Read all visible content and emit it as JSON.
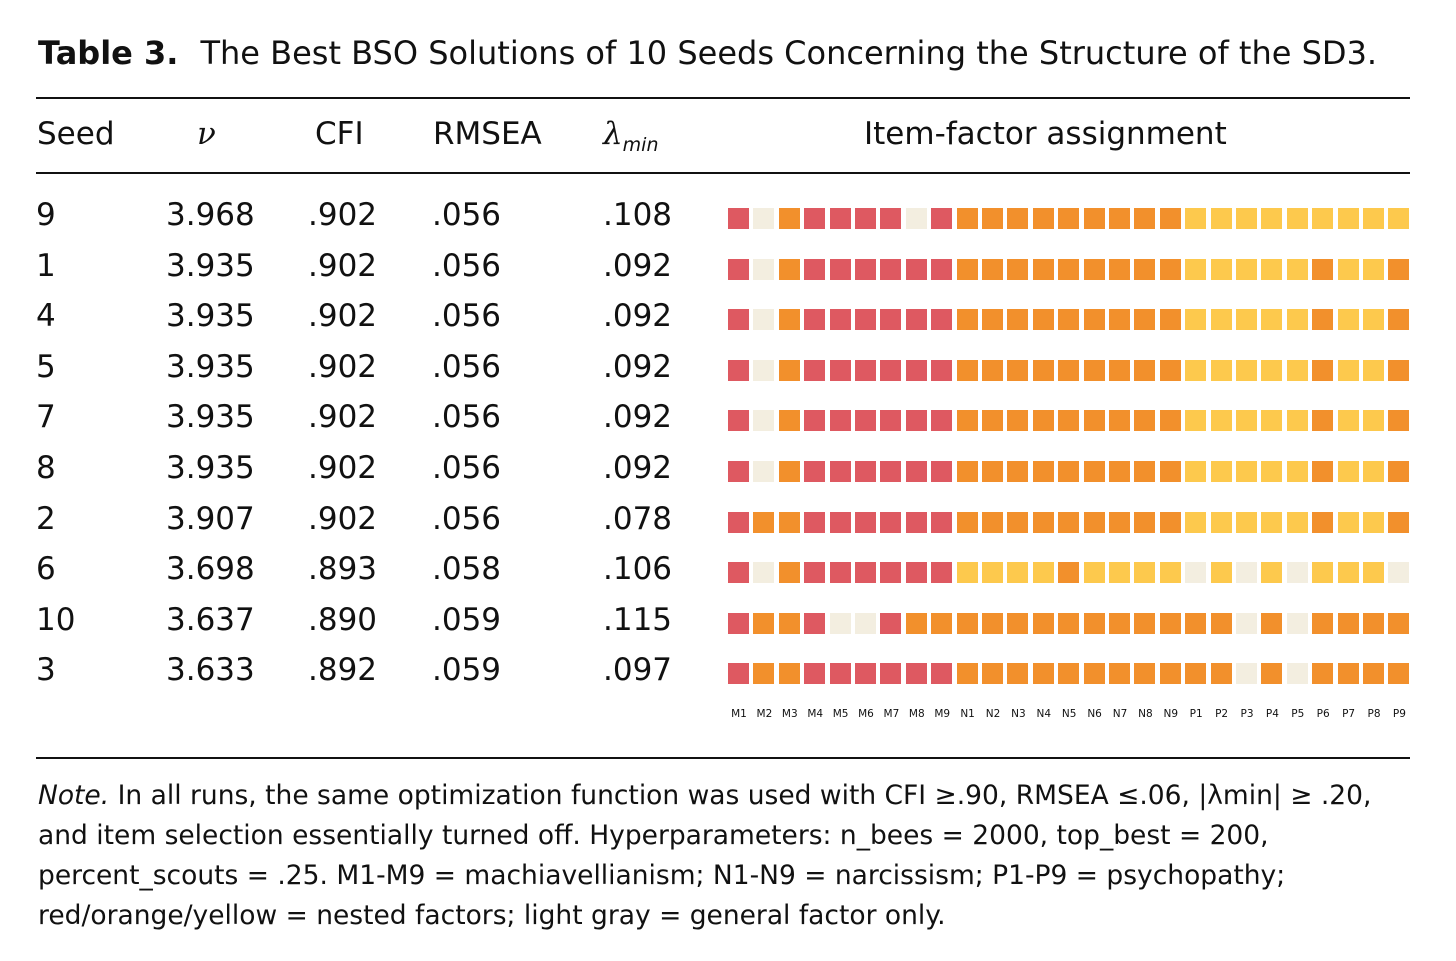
{
  "caption": {
    "label": "Table 3.",
    "text": "The Best BSO Solutions of 10 Seeds Concerning the Structure of the SD3."
  },
  "columns": {
    "seed": "Seed",
    "nu": "ν",
    "cfi": "CFI",
    "rmsea": "RMSEA",
    "lambda_symbol": "λ",
    "lambda_sub": "min",
    "assignment": "Item-factor assignment"
  },
  "items": [
    "M1",
    "M2",
    "M3",
    "M4",
    "M5",
    "M6",
    "M7",
    "M8",
    "M9",
    "N1",
    "N2",
    "N3",
    "N4",
    "N5",
    "N6",
    "N7",
    "N8",
    "N9",
    "P1",
    "P2",
    "P3",
    "P4",
    "P5",
    "P6",
    "P7",
    "P8",
    "P9"
  ],
  "factor_colors": {
    "R": "#de5961",
    "O": "#f2902c",
    "Y": "#fdc94d",
    "G": "#f3eee0"
  },
  "factor_legend": "R = red, O = orange, Y = yellow, G = light gray (general factor only)",
  "rows": [
    {
      "seed": "9",
      "nu": "3.968",
      "cfi": ".902",
      "rmsea": ".056",
      "lambda": ".108",
      "assignment": "RGORRRRGROOOOOOOOOYYYYYYYYY"
    },
    {
      "seed": "1",
      "nu": "3.935",
      "cfi": ".902",
      "rmsea": ".056",
      "lambda": ".092",
      "assignment": "RGORRRRRROOOOOOOOOYYYYYOYYO"
    },
    {
      "seed": "4",
      "nu": "3.935",
      "cfi": ".902",
      "rmsea": ".056",
      "lambda": ".092",
      "assignment": "RGORRRRRROOOOOOOOOYYYYYOYYO"
    },
    {
      "seed": "5",
      "nu": "3.935",
      "cfi": ".902",
      "rmsea": ".056",
      "lambda": ".092",
      "assignment": "RGORRRRRROOOOOOOOOYYYYYOYYO"
    },
    {
      "seed": "7",
      "nu": "3.935",
      "cfi": ".902",
      "rmsea": ".056",
      "lambda": ".092",
      "assignment": "RGORRRRRROOOOOOOOOYYYYYOYYO"
    },
    {
      "seed": "8",
      "nu": "3.935",
      "cfi": ".902",
      "rmsea": ".056",
      "lambda": ".092",
      "assignment": "RGORRRRRROOOOOOOOOYYYYYOYYO"
    },
    {
      "seed": "2",
      "nu": "3.907",
      "cfi": ".902",
      "rmsea": ".056",
      "lambda": ".078",
      "assignment": "ROORRRRRROOOOOOOOOYYYYYOYYO"
    },
    {
      "seed": "6",
      "nu": "3.698",
      "cfi": ".893",
      "rmsea": ".058",
      "lambda": ".106",
      "assignment": "RGORRRRRRYYYYOYYYYGYGYGYYYG"
    },
    {
      "seed": "10",
      "nu": "3.637",
      "cfi": ".890",
      "rmsea": ".059",
      "lambda": ".115",
      "assignment": "ROORGGROOOOOOOOOOOOOGOGOOOO"
    },
    {
      "seed": "3",
      "nu": "3.633",
      "cfi": ".892",
      "rmsea": ".059",
      "lambda": ".097",
      "assignment": "ROORRRRRROOOOOOOOOOOGOGOOOO"
    }
  ],
  "note": {
    "label": "Note.",
    "text": " In all runs, the same optimization function was used with CFI ≥.90, RMSEA ≤.06, |λmin| ≥ .20, and item selection essentially turned off. Hyperparameters: n_bees = 2000, top_best = 200, percent_scouts = .25. M1-M9 = machiavellianism; N1-N9 = narcissism; P1-P9 = psychopathy; red/orange/yellow = nested factors; light gray = general factor only."
  }
}
